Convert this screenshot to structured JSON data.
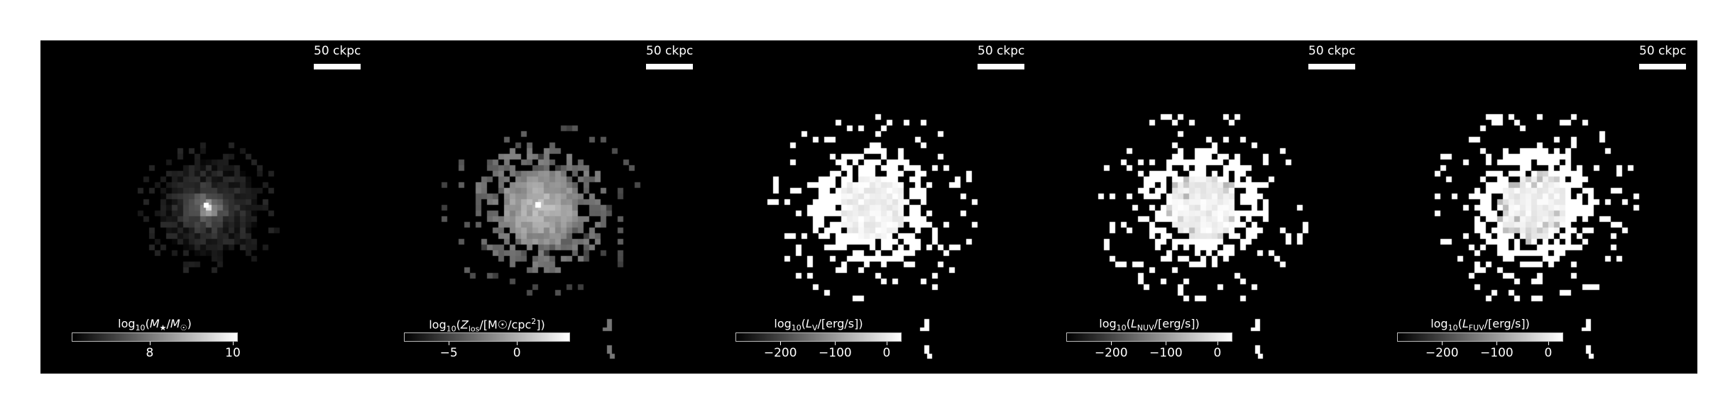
{
  "scale_label": "50 ckpc",
  "panels": [
    {
      "name": "stellar-mass",
      "colorbar": {
        "prefix": "log",
        "sub": "10",
        "expr": "(M★/M☉)",
        "ticks": [
          {
            "value": "8",
            "frac": 0.47
          },
          {
            "value": "10",
            "frac": 0.97
          }
        ]
      }
    },
    {
      "name": "metallicity",
      "colorbar": {
        "prefix": "log",
        "sub": "10",
        "expr": "(Z_los/[M☉/cpc²])",
        "ticks": [
          {
            "value": "−5",
            "frac": 0.27
          },
          {
            "value": "0",
            "frac": 0.68
          }
        ]
      }
    },
    {
      "name": "v-luminosity",
      "colorbar": {
        "prefix": "log",
        "sub": "10",
        "expr": "(L_V/[erg/s])",
        "ticks": [
          {
            "value": "−200",
            "frac": 0.27
          },
          {
            "value": "−100",
            "frac": 0.6
          },
          {
            "value": "0",
            "frac": 0.91
          }
        ]
      }
    },
    {
      "name": "nuv-luminosity",
      "colorbar": {
        "prefix": "log",
        "sub": "10",
        "expr": "(L_NUV/[erg/s])",
        "ticks": [
          {
            "value": "−200",
            "frac": 0.27
          },
          {
            "value": "−100",
            "frac": 0.6
          },
          {
            "value": "0",
            "frac": 0.91
          }
        ]
      }
    },
    {
      "name": "fuv-luminosity",
      "colorbar": {
        "prefix": "log",
        "sub": "10",
        "expr": "(L_FUV/[erg/s])",
        "ticks": [
          {
            "value": "−200",
            "frac": 0.27
          },
          {
            "value": "−100",
            "frac": 0.6
          },
          {
            "value": "0",
            "frac": 0.91
          }
        ]
      }
    }
  ]
}
